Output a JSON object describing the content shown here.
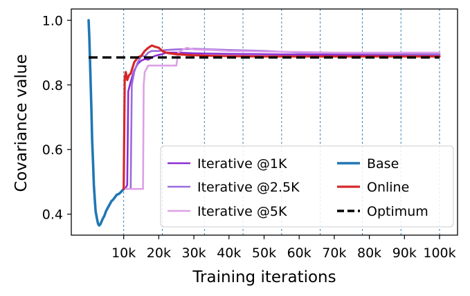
{
  "chart_data": {
    "type": "line",
    "title": "",
    "xlabel": "Training iterations",
    "ylabel": "Covariance value",
    "xlim": [
      0,
      100000
    ],
    "ylim": [
      0.335,
      1.035
    ],
    "x_ticks": [
      {
        "value": 10000,
        "label": "10k"
      },
      {
        "value": 20000,
        "label": "20k"
      },
      {
        "value": 30000,
        "label": "30k"
      },
      {
        "value": 40000,
        "label": "40k"
      },
      {
        "value": 50000,
        "label": "50k"
      },
      {
        "value": 60000,
        "label": "60k"
      },
      {
        "value": 70000,
        "label": "70k"
      },
      {
        "value": 80000,
        "label": "80k"
      },
      {
        "value": 90000,
        "label": "90k"
      },
      {
        "value": 100000,
        "label": "100k"
      }
    ],
    "y_ticks": [
      {
        "value": 0.4,
        "label": "0.4"
      },
      {
        "value": 0.6,
        "label": "0.6"
      },
      {
        "value": 0.8,
        "label": "0.8"
      },
      {
        "value": 1.0,
        "label": "1.0"
      }
    ],
    "vlines": [
      10000,
      21000,
      33000,
      44000,
      55000,
      66000,
      78000,
      89000,
      100000
    ],
    "grid": false,
    "legend": {
      "placement": "lower-right",
      "columns": 2
    },
    "optimum": 0.885,
    "series": [
      {
        "name": "Iterative @1K",
        "color": "#8a2ed4",
        "width": 2.6,
        "style": "solid",
        "x": [
          10000,
          10500,
          11000,
          11300,
          12000,
          13000,
          14000,
          15000,
          16000,
          17000,
          18000,
          19000,
          20000,
          21000,
          22000,
          25000,
          30000,
          35000,
          40000,
          50000,
          60000,
          70000,
          80000,
          90000,
          100000
        ],
        "y": [
          0.478,
          0.48,
          0.49,
          0.78,
          0.81,
          0.845,
          0.865,
          0.875,
          0.88,
          0.878,
          0.885,
          0.89,
          0.893,
          0.895,
          0.9,
          0.9,
          0.898,
          0.897,
          0.896,
          0.895,
          0.894,
          0.893,
          0.893,
          0.894,
          0.893
        ]
      },
      {
        "name": "Iterative @2.5K",
        "color": "#9b6bdc",
        "width": 2.6,
        "style": "solid",
        "x": [
          10000,
          11000,
          12000,
          12300,
          13000,
          14000,
          15000,
          16000,
          17000,
          18000,
          20000,
          22000,
          25000,
          30000,
          35000,
          40000,
          50000,
          60000,
          70000,
          80000,
          90000,
          100000
        ],
        "y": [
          0.478,
          0.478,
          0.478,
          0.8,
          0.84,
          0.87,
          0.89,
          0.888,
          0.9,
          0.905,
          0.905,
          0.908,
          0.91,
          0.912,
          0.91,
          0.908,
          0.905,
          0.9,
          0.898,
          0.897,
          0.896,
          0.895
        ]
      },
      {
        "name": "Iterative @5K",
        "color": "#dda0e6",
        "width": 2.6,
        "style": "solid",
        "x": [
          10000,
          12000,
          14000,
          15500,
          15700,
          16000,
          17000,
          18000,
          20000,
          22000,
          24000,
          25000,
          25500,
          27000,
          28000,
          29000,
          30000,
          35000,
          40000,
          50000,
          60000,
          70000,
          80000,
          90000,
          100000
        ],
        "y": [
          0.478,
          0.478,
          0.478,
          0.478,
          0.8,
          0.84,
          0.86,
          0.86,
          0.86,
          0.86,
          0.86,
          0.86,
          0.9,
          0.91,
          0.915,
          0.912,
          0.91,
          0.908,
          0.905,
          0.903,
          0.902,
          0.9,
          0.9,
          0.9,
          0.9
        ]
      },
      {
        "name": "Base",
        "color": "#1f77b4",
        "width": 3.6,
        "style": "solid",
        "x": [
          0,
          200,
          500,
          800,
          1000,
          1300,
          1500,
          1800,
          2000,
          2300,
          2500,
          2700,
          3000,
          3300,
          3500,
          4000,
          4500,
          5000,
          5500,
          6000,
          6500,
          7000,
          7500,
          8000,
          8500,
          9000,
          9500,
          10000
        ],
        "y": [
          1.0,
          0.95,
          0.84,
          0.72,
          0.63,
          0.55,
          0.49,
          0.44,
          0.41,
          0.39,
          0.38,
          0.37,
          0.365,
          0.368,
          0.372,
          0.385,
          0.395,
          0.41,
          0.42,
          0.43,
          0.44,
          0.445,
          0.452,
          0.46,
          0.462,
          0.466,
          0.472,
          0.478
        ]
      },
      {
        "name": "Online",
        "color": "#d62728",
        "width": 3.2,
        "style": "solid",
        "x": [
          10000,
          10300,
          10600,
          11000,
          11500,
          12000,
          13000,
          14000,
          15000,
          16000,
          17000,
          18000,
          19000,
          20000,
          21000,
          22000,
          23000,
          25000,
          28000,
          30000,
          35000,
          40000,
          50000,
          60000,
          70000,
          80000,
          90000,
          100000
        ],
        "y": [
          0.478,
          0.82,
          0.84,
          0.815,
          0.83,
          0.835,
          0.87,
          0.885,
          0.89,
          0.905,
          0.915,
          0.922,
          0.918,
          0.915,
          0.905,
          0.9,
          0.898,
          0.895,
          0.893,
          0.892,
          0.89,
          0.889,
          0.888,
          0.888,
          0.888,
          0.888,
          0.888,
          0.888
        ]
      },
      {
        "name": "Optimum",
        "color": "#000000",
        "width": 3.4,
        "style": "dashed",
        "x": [
          0,
          100000
        ],
        "y": [
          0.885,
          0.885
        ]
      }
    ]
  }
}
